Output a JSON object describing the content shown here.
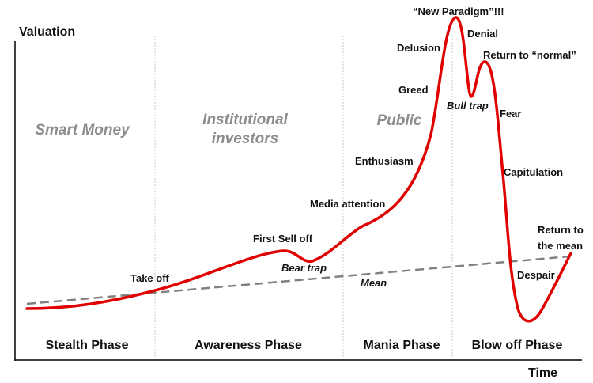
{
  "axes": {
    "y_label": "Valuation",
    "x_label": "Time"
  },
  "groups": [
    {
      "lines": [
        "Smart Money"
      ]
    },
    {
      "lines": [
        "Institutional",
        "investors"
      ]
    },
    {
      "lines": [
        "Public"
      ]
    }
  ],
  "phases": [
    "Stealth Phase",
    "Awareness Phase",
    "Mania Phase",
    "Blow off Phase"
  ],
  "annotations": {
    "take_off": "Take off",
    "first_sell_off": "First Sell off",
    "bear_trap": "Bear trap",
    "media_attention": "Media attention",
    "enthusiasm": "Enthusiasm",
    "greed": "Greed",
    "delusion": "Delusion",
    "new_paradigm": "“New Paradigm”!!!",
    "denial": "Denial",
    "bull_trap": "Bull trap",
    "return_to_normal": "Return to “normal”",
    "fear": "Fear",
    "capitulation": "Capitulation",
    "despair": "Despair",
    "return_to_mean_1": "Return to",
    "return_to_mean_2": "the mean",
    "mean": "Mean"
  },
  "colors": {
    "curve": "#e00000",
    "mean_line": "#808080",
    "divider": "#c8c8c8",
    "axis": "#000000",
    "group_text": "#8c8c8c"
  }
}
